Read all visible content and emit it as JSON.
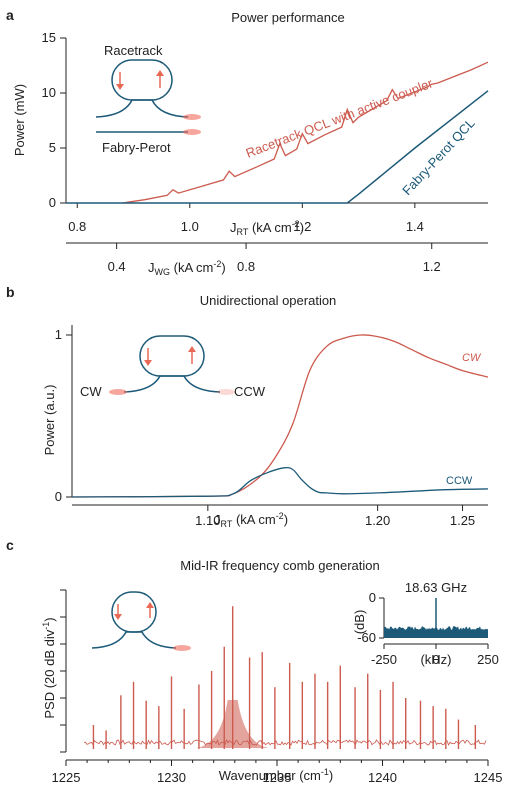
{
  "colors": {
    "rt": "#cc5a4e",
    "fp": "#1c5a78",
    "axis": "#222222",
    "glow": "#f06a5a"
  },
  "panels": {
    "a": {
      "letter": "a",
      "title": "Power performance",
      "ylabel": "Power (mW)",
      "x_top_label_main": "J",
      "x_top_label_sub": "RT",
      "x_top_label_unit": " (kA cm",
      "x_top_label_sup": "-2",
      "x_top_label_end": ")",
      "x_bot_label_main": "J",
      "x_bot_label_sub": "WG",
      "x_bot_label_unit": " (kA cm",
      "x_bot_label_sup": "-2",
      "x_bot_label_end": ")",
      "inset_top": "Racetrack",
      "inset_bottom": "Fabry-Perot",
      "rt_series": "Racetrack QCL with active coupler",
      "fp_series": "Fabry-Perot QCL"
    },
    "b": {
      "letter": "b",
      "title": "Unidirectional operation",
      "ylabel": "Power (a.u.)",
      "x_label_main": "J",
      "x_label_sub": "RT",
      "x_label_unit": " (kA cm",
      "x_label_sup": "-2",
      "x_label_end": ")",
      "inset_left": "CW",
      "inset_right": "CCW",
      "cw_series": "CW",
      "ccw_series": "CCW"
    },
    "c": {
      "letter": "c",
      "title": "Mid-IR frequency comb generation",
      "ylabel_main": "PSD (20 dB div",
      "ylabel_sup": "-1",
      "ylabel_end": ")",
      "x_label_main": "Wavenumber (cm",
      "x_label_sup": "-1",
      "x_label_end": ")",
      "inset_title": "18.63 GHz",
      "inset_ylabel": "(dB)",
      "inset_xlabel": "(kHz)"
    }
  },
  "chart_data": [
    {
      "type": "line",
      "title": "Power performance",
      "ylabel": "Power (mW)",
      "xlabel": "JRT (kA cm-2)",
      "xlabel_secondary": "JWG (kA cm-2)",
      "xlim": [
        0.78,
        1.53
      ],
      "ylim": [
        0,
        15
      ],
      "yticks": [
        0,
        5,
        10,
        15
      ],
      "xticks": [
        0.8,
        1.0,
        1.2,
        1.4
      ],
      "xticks_secondary": [
        0.4,
        0.8,
        1.2
      ],
      "secondary_axis_map": [
        [
          0.4,
          0.87
        ],
        [
          0.8,
          1.1
        ],
        [
          1.2,
          1.43
        ]
      ],
      "series": [
        {
          "name": "Racetrack QCL with active coupler",
          "x": [
            0.88,
            0.92,
            0.96,
            0.97,
            0.98,
            1.02,
            1.06,
            1.07,
            1.08,
            1.12,
            1.15,
            1.16,
            1.17,
            1.19,
            1.2,
            1.21,
            1.24,
            1.27,
            1.28,
            1.29,
            1.3,
            1.33,
            1.35,
            1.36,
            1.37,
            1.4,
            1.42,
            1.43,
            1.44,
            1.47,
            1.5,
            1.53
          ],
          "y": [
            0,
            0.3,
            0.7,
            1.2,
            0.9,
            1.5,
            2.1,
            2.9,
            2.4,
            3.3,
            4.0,
            5.4,
            4.3,
            4.9,
            6.3,
            5.4,
            6.2,
            6.9,
            8.5,
            7.3,
            7.8,
            8.7,
            9.3,
            10.3,
            9.5,
            10.1,
            10.5,
            10.8,
            10.9,
            11.5,
            12.1,
            12.8
          ]
        },
        {
          "name": "Fabry-Perot QCL",
          "x": [
            0.78,
            1.28,
            1.3,
            1.4,
            1.53
          ],
          "y": [
            0,
            0,
            0.8,
            5.0,
            10.2
          ]
        }
      ]
    },
    {
      "type": "line",
      "title": "Unidirectional operation",
      "ylabel": "Power (a.u.)",
      "xlabel": "JRT (kA cm-2)",
      "xlim": [
        1.02,
        1.265
      ],
      "ylim": [
        0,
        1
      ],
      "yticks": [
        0,
        1
      ],
      "xticks": [
        1.1,
        1.2,
        1.25
      ],
      "xtick_labels": [
        "1.10",
        "1.20",
        "1.25"
      ],
      "series": [
        {
          "name": "CW",
          "x": [
            1.02,
            1.1,
            1.115,
            1.13,
            1.14,
            1.15,
            1.16,
            1.17,
            1.18,
            1.19,
            1.2,
            1.21,
            1.22,
            1.23,
            1.24,
            1.25,
            1.265
          ],
          "y": [
            0,
            0.005,
            0.02,
            0.12,
            0.25,
            0.45,
            0.78,
            0.93,
            0.98,
            1.0,
            0.99,
            0.96,
            0.91,
            0.86,
            0.82,
            0.78,
            0.74
          ]
        },
        {
          "name": "CCW",
          "x": [
            1.02,
            1.1,
            1.115,
            1.125,
            1.135,
            1.145,
            1.15,
            1.155,
            1.16,
            1.165,
            1.17,
            1.18,
            1.2,
            1.22,
            1.24,
            1.265
          ],
          "y": [
            0,
            0.005,
            0.02,
            0.1,
            0.15,
            0.18,
            0.17,
            0.11,
            0.06,
            0.03,
            0.025,
            0.02,
            0.025,
            0.035,
            0.045,
            0.05
          ]
        }
      ]
    },
    {
      "type": "line",
      "title": "Mid-IR frequency comb generation",
      "ylabel": "PSD (20 dB div-1)",
      "xlabel": "Wavenumber (cm-1)",
      "xlim": [
        1225,
        1245
      ],
      "xticks": [
        1225,
        1230,
        1235,
        1240,
        1245
      ],
      "ylim": [
        0,
        6
      ],
      "comb_spacing_cm-1": 0.62,
      "comb_start": 1226.3,
      "comb_end": 1244.4,
      "main_peak_cm-1": 1232.9,
      "series": [
        {
          "name": "spectrum",
          "x": [
            1226.3,
            1226.9,
            1227.6,
            1228.2,
            1228.8,
            1229.4,
            1230.0,
            1230.6,
            1231.3,
            1231.9,
            1232.5,
            1232.9,
            1233.7,
            1234.3,
            1234.9,
            1235.6,
            1236.2,
            1236.8,
            1237.4,
            1238.0,
            1238.7,
            1239.3,
            1239.9,
            1240.5,
            1241.1,
            1241.8,
            1242.4,
            1243.0,
            1243.6,
            1244.4
          ],
          "y": [
            1.0,
            0.8,
            2.1,
            2.6,
            1.9,
            1.7,
            2.8,
            1.6,
            2.5,
            3.0,
            3.9,
            5.4,
            3.5,
            3.7,
            2.4,
            3.3,
            2.6,
            2.9,
            2.6,
            3.2,
            2.4,
            2.9,
            2.3,
            2.6,
            2.0,
            1.9,
            1.7,
            1.6,
            1.2,
            1.0
          ]
        }
      ],
      "inset": {
        "title": "18.63 GHz",
        "ylabel": "(dB)",
        "xlabel": "(kHz)",
        "xlim": [
          -250,
          250
        ],
        "ylim": [
          -60,
          0
        ],
        "xticks": [
          -250,
          0,
          250
        ],
        "yticks": [
          0,
          -60
        ],
        "peak_x": 0
      }
    }
  ]
}
